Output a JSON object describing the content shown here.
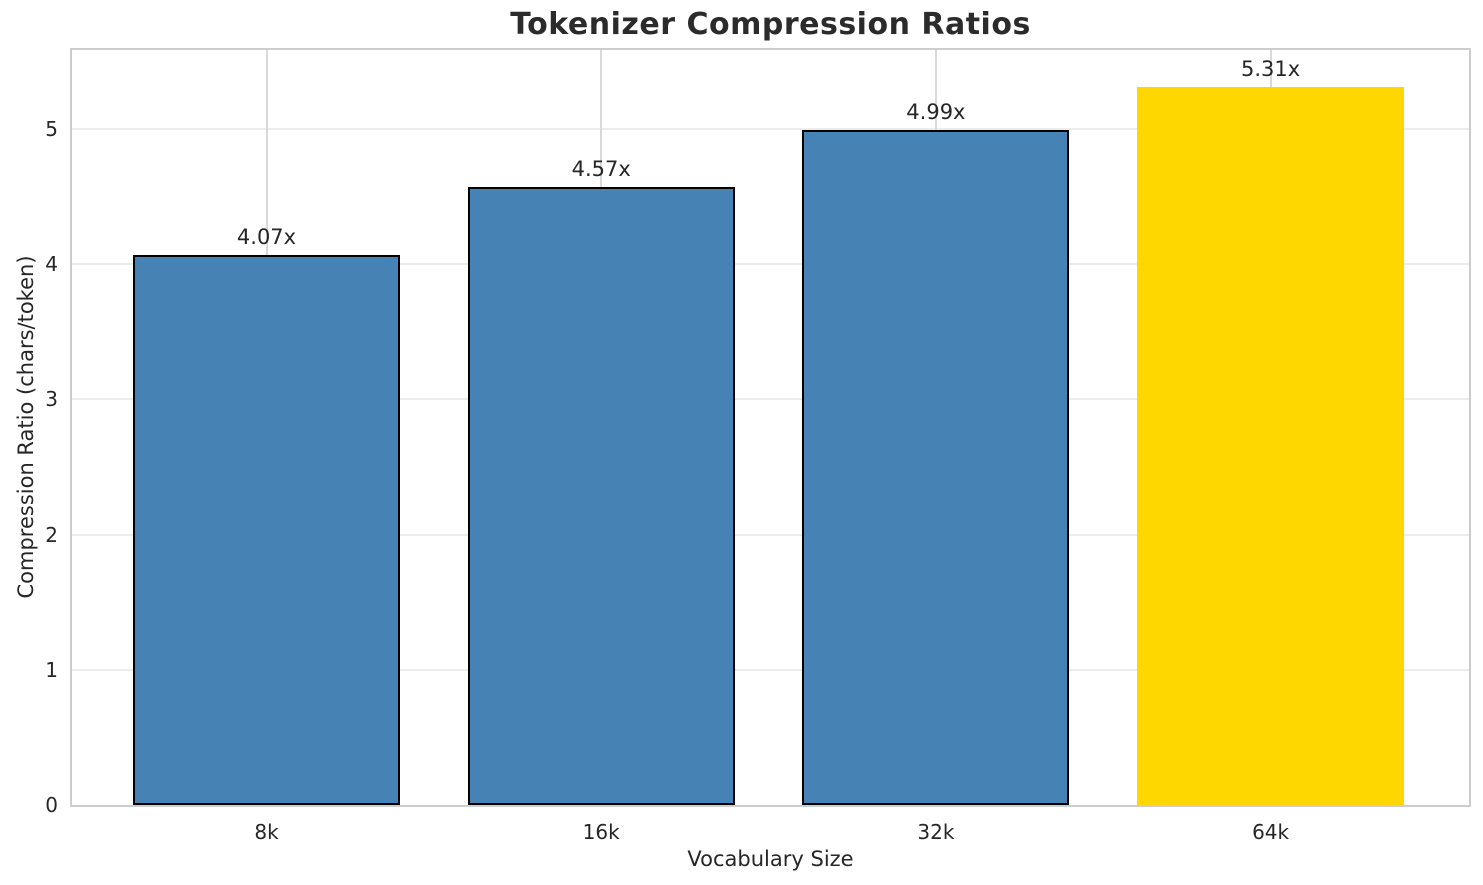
{
  "chart_data": {
    "type": "bar",
    "title": "Tokenizer Compression Ratios",
    "xlabel": "Vocabulary Size",
    "ylabel": "Compression Ratio (chars/token)",
    "categories": [
      "8k",
      "16k",
      "32k",
      "64k"
    ],
    "values": [
      4.07,
      4.57,
      4.99,
      5.31
    ],
    "bar_labels": [
      "4.07x",
      "4.57x",
      "4.99x",
      "5.31x"
    ],
    "bar_colors": [
      "#4682B4",
      "#4682B4",
      "#4682B4",
      "#FFD700"
    ],
    "bar_edge_colors": [
      "#000000",
      "#000000",
      "#000000",
      null
    ],
    "yticks": [
      0,
      1,
      2,
      3,
      4,
      5
    ],
    "ylim": [
      0,
      5.585
    ],
    "grid": true,
    "legend": null,
    "highlighted_category": "64k"
  },
  "colors": {
    "accent_blue": "#4682B4",
    "accent_gold": "#FFD700",
    "bar_edge": "#000000",
    "text": "#262626",
    "spine": "#cdcdcd",
    "grid_h": "#ececec",
    "grid_v": "#d9d9d9",
    "background": "#ffffff"
  }
}
